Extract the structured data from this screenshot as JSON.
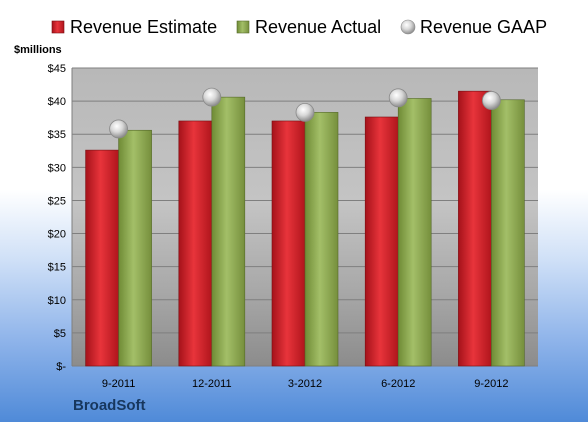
{
  "company": "BroadSoft",
  "colors": {
    "estimate": "#d21f27",
    "actual": "#8aa84d",
    "gaap": "#c8c8c8"
  },
  "chart_data": {
    "type": "bar",
    "title": "",
    "ylabel": "$millions",
    "xlabel": "",
    "categories": [
      "9-2011",
      "12-2011",
      "3-2012",
      "6-2012",
      "9-2012"
    ],
    "series": [
      {
        "name": "Revenue Estimate",
        "kind": "bar",
        "values": [
          32.6,
          37.0,
          37.0,
          37.6,
          41.5
        ]
      },
      {
        "name": "Revenue Actual",
        "kind": "bar",
        "values": [
          35.6,
          40.6,
          38.3,
          40.4,
          40.2
        ]
      },
      {
        "name": "Revenue GAAP",
        "kind": "marker",
        "values": [
          35.8,
          40.6,
          38.3,
          40.5,
          40.1
        ]
      }
    ],
    "ylim": [
      0,
      45
    ],
    "yticks": [
      0,
      5,
      10,
      15,
      20,
      25,
      30,
      35,
      40,
      45
    ],
    "ytick_labels": [
      "$-",
      "$5",
      "$10",
      "$15",
      "$20",
      "$25",
      "$30",
      "$35",
      "$40",
      "$45"
    ],
    "legend_position": "top",
    "grid": true
  }
}
